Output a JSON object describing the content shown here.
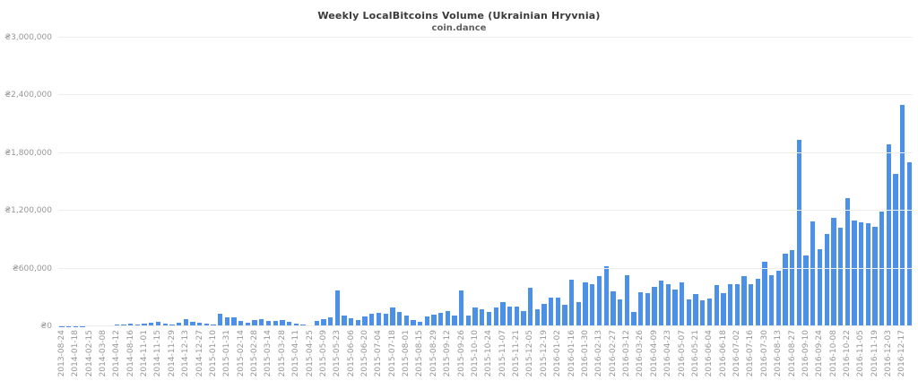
{
  "chart_data": {
    "type": "bar",
    "title": "Weekly LocalBitcoins Volume (Ukrainian Hryvnia)",
    "subtitle": "coin.dance",
    "xlabel": "",
    "ylabel": "",
    "ylim": [
      0,
      3000000
    ],
    "grid": "horizontal",
    "legend": "none",
    "currency_symbol": "₴",
    "y_tick_labels_bottom_up": [
      "₴0",
      "₴600,000",
      "₴1,200,000",
      "₴1,800,000",
      "₴2,400,000",
      "₴3,000,000"
    ],
    "x_tick_labels": [
      "2013-08-24",
      "2014-01-18",
      "2014-02-15",
      "2014-03-08",
      "2014-04-12",
      "2014-08-16",
      "2014-11-01",
      "2014-11-15",
      "2014-11-29",
      "2014-12-13",
      "2014-12-27",
      "2015-01-10",
      "2015-01-31",
      "2015-02-14",
      "2015-02-28",
      "2015-03-14",
      "2015-03-28",
      "2015-04-11",
      "2015-04-25",
      "2015-05-09",
      "2015-05-23",
      "2015-06-06",
      "2015-06-20",
      "2015-07-04",
      "2015-07-18",
      "2015-08-01",
      "2015-08-15",
      "2015-08-29",
      "2015-09-12",
      "2015-09-26",
      "2015-10-10",
      "2015-10-24",
      "2015-11-07",
      "2015-11-21",
      "2015-12-05",
      "2015-12-19",
      "2016-01-02",
      "2016-01-16",
      "2016-01-30",
      "2016-02-13",
      "2016-02-27",
      "2016-03-12",
      "2016-03-26",
      "2016-04-09",
      "2016-04-23",
      "2016-05-07",
      "2016-05-21",
      "2016-06-04",
      "2016-06-18",
      "2016-07-02",
      "2016-07-16",
      "2016-07-30",
      "2016-08-13",
      "2016-08-27",
      "2016-09-10",
      "2016-09-24",
      "2016-10-08",
      "2016-10-22",
      "2016-11-05",
      "2016-11-19",
      "2016-12-03",
      "2016-12-17"
    ],
    "x_label_every_n_bars": 2,
    "values": [
      2000,
      1000,
      1000,
      3000,
      6000,
      10000,
      14000,
      12000,
      16000,
      22000,
      28000,
      18000,
      26000,
      37000,
      47000,
      28000,
      20000,
      38000,
      75000,
      47000,
      37000,
      28000,
      19000,
      130000,
      93000,
      93000,
      56000,
      37000,
      65000,
      77000,
      53000,
      53000,
      65000,
      50000,
      28000,
      21000,
      12000,
      59000,
      77000,
      90000,
      370000,
      109000,
      81000,
      62000,
      100000,
      130000,
      137000,
      130000,
      193000,
      146000,
      115000,
      68000,
      44000,
      100000,
      124000,
      137000,
      161000,
      115000,
      370000,
      112000,
      196000,
      177000,
      149000,
      196000,
      252000,
      205000,
      205000,
      158000,
      401000,
      177000,
      233000,
      298000,
      301000,
      224000,
      482000,
      254000,
      457000,
      441000,
      519000,
      621000,
      363000,
      280000,
      534000,
      146000,
      354000,
      342000,
      410000,
      472000,
      441000,
      385000,
      457000,
      280000,
      333000,
      270000,
      292000,
      426000,
      342000,
      441000,
      435000,
      519000,
      441000,
      497000,
      674000,
      534000,
      575000,
      758000,
      789000,
      1941000,
      736000,
      1093000,
      798000,
      960000,
      1124000,
      1022000,
      1332000,
      1099000,
      1078000,
      1069000,
      1031000,
      1191000,
      1894000,
      1584000,
      2306000,
      1706000
    ],
    "colors": {
      "bar": "#4d90e8",
      "grid": "#ededed",
      "axis_text": "#969696",
      "title": "#3a3a3a",
      "subtitle": "#606060",
      "background": "#ffffff"
    }
  }
}
